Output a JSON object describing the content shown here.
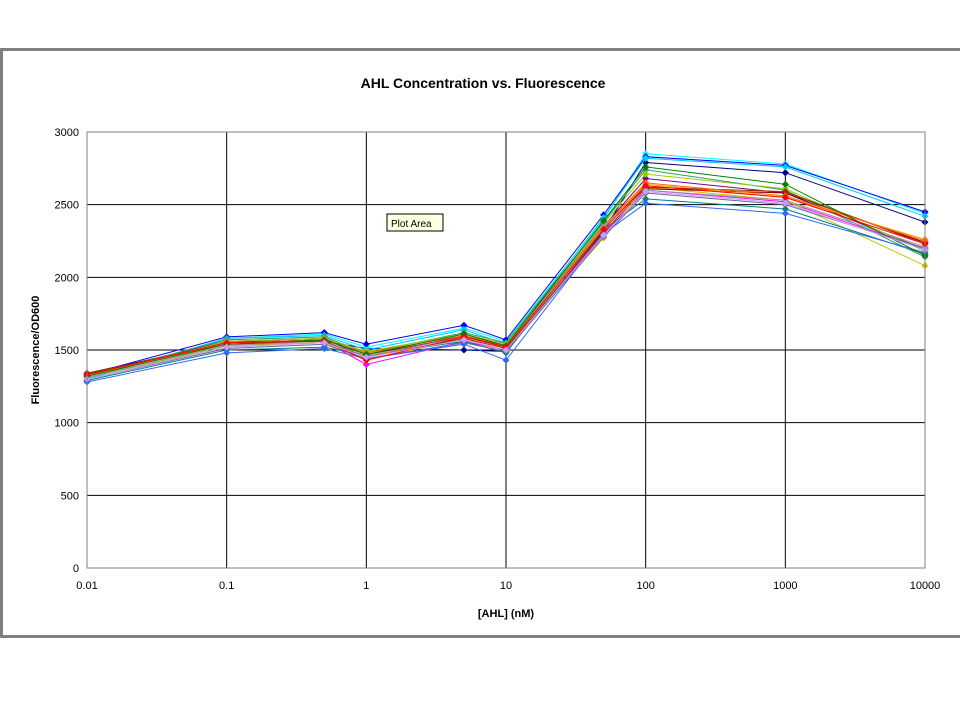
{
  "chart_data": {
    "type": "line",
    "title": "AHL Concentration vs. Fluorescence",
    "xlabel": "[AHL] (nM)",
    "ylabel": "Fluorescence/OD600",
    "x_scale": "log",
    "x": [
      0.01,
      0.1,
      0.5,
      1,
      5,
      10,
      50,
      100,
      1000,
      10000
    ],
    "x_tick_labels": [
      "0.01",
      "0.1",
      "1",
      "10",
      "100",
      "1000",
      "10000"
    ],
    "x_tick_values": [
      0.01,
      0.1,
      1,
      10,
      100,
      1000,
      10000
    ],
    "ylim": [
      0,
      3000
    ],
    "y_tick_labels": [
      "0",
      "500",
      "1000",
      "1500",
      "2000",
      "2500",
      "3000"
    ],
    "y_tick_values": [
      0,
      500,
      1000,
      1500,
      2000,
      2500,
      3000
    ],
    "grid": true,
    "legend": "none",
    "tooltip": "Plot Area",
    "series": [
      {
        "color": "#000080",
        "values": [
          1330,
          1560,
          1560,
          1510,
          1500,
          1490,
          2320,
          2790,
          2720,
          2380
        ]
      },
      {
        "color": "#ff00ff",
        "values": [
          1320,
          1540,
          1560,
          1400,
          1560,
          1500,
          2300,
          2600,
          2520,
          2200
        ]
      },
      {
        "color": "#c8c800",
        "values": [
          1310,
          1520,
          1550,
          1430,
          1580,
          1510,
          2270,
          2620,
          2530,
          2080
        ]
      },
      {
        "color": "#00ffff",
        "values": [
          1300,
          1580,
          1610,
          1520,
          1650,
          1560,
          2400,
          2850,
          2780,
          2440
        ]
      },
      {
        "color": "#800080",
        "values": [
          1320,
          1560,
          1580,
          1450,
          1600,
          1520,
          2350,
          2680,
          2580,
          2190
        ]
      },
      {
        "color": "#800000",
        "values": [
          1340,
          1550,
          1570,
          1470,
          1590,
          1530,
          2360,
          2610,
          2580,
          2240
        ]
      },
      {
        "color": "#008080",
        "values": [
          1290,
          1500,
          1520,
          1460,
          1560,
          1480,
          2330,
          2540,
          2470,
          2160
        ]
      },
      {
        "color": "#0000ff",
        "values": [
          1330,
          1590,
          1620,
          1540,
          1670,
          1570,
          2430,
          2830,
          2770,
          2450
        ]
      },
      {
        "color": "#00ccff",
        "values": [
          1300,
          1580,
          1600,
          1500,
          1640,
          1540,
          2410,
          2820,
          2760,
          2420
        ]
      },
      {
        "color": "#339966",
        "values": [
          1320,
          1570,
          1590,
          1480,
          1620,
          1550,
          2380,
          2740,
          2600,
          2140
        ]
      },
      {
        "color": "#99cc00",
        "values": [
          1310,
          1560,
          1580,
          1490,
          1610,
          1540,
          2370,
          2710,
          2610,
          2180
        ]
      },
      {
        "color": "#ff9900",
        "values": [
          1330,
          1530,
          1550,
          1460,
          1570,
          1520,
          2340,
          2640,
          2550,
          2260
        ]
      },
      {
        "color": "#993300",
        "values": [
          1340,
          1540,
          1560,
          1450,
          1580,
          1510,
          2310,
          2620,
          2590,
          2230
        ]
      },
      {
        "color": "#666699",
        "values": [
          1300,
          1510,
          1540,
          1440,
          1550,
          1490,
          2280,
          2580,
          2500,
          2200
        ]
      },
      {
        "color": "#ff6600",
        "values": [
          1320,
          1550,
          1570,
          1480,
          1600,
          1530,
          2350,
          2650,
          2560,
          2250
        ]
      },
      {
        "color": "#3366ff",
        "values": [
          1280,
          1480,
          1510,
          1440,
          1540,
          1430,
          2300,
          2510,
          2440,
          2170
        ]
      },
      {
        "color": "#969696",
        "values": [
          1310,
          1530,
          1560,
          1460,
          1590,
          1520,
          2360,
          2600,
          2530,
          2210
        ]
      },
      {
        "color": "#008000",
        "values": [
          1320,
          1540,
          1570,
          1470,
          1610,
          1530,
          2390,
          2760,
          2640,
          2150
        ]
      },
      {
        "color": "#ff0000",
        "values": [
          1330,
          1550,
          1560,
          1430,
          1590,
          1520,
          2330,
          2630,
          2550,
          2230
        ]
      },
      {
        "color": "#cc99ff",
        "values": [
          1300,
          1520,
          1550,
          1450,
          1570,
          1500,
          2290,
          2590,
          2510,
          2190
        ]
      }
    ]
  }
}
